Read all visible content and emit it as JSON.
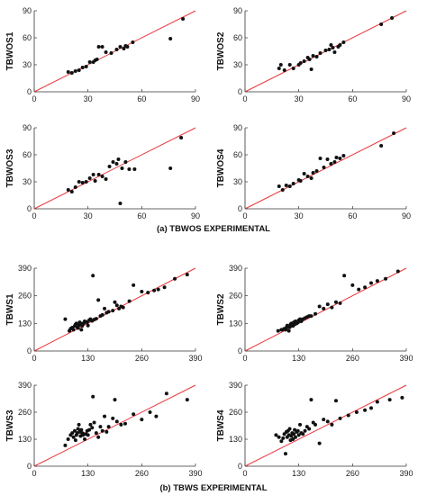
{
  "captions": {
    "a": "(a) TBWOS EXPERIMENTAL",
    "b": "(b) TBWS EXPERIMENTAL"
  },
  "colors": {
    "line": "#e8383d",
    "point": "#111111",
    "axis": "#333333"
  },
  "chart_data": [
    {
      "type": "scatter",
      "ylabel": "TBWOS1",
      "xlim": [
        0,
        90
      ],
      "ylim": [
        0,
        90
      ],
      "xticks": [
        0,
        30,
        60,
        90
      ],
      "yticks": [
        0,
        30,
        60,
        90
      ],
      "reference_line": "y = x",
      "points": [
        [
          19,
          22
        ],
        [
          21,
          21
        ],
        [
          23,
          23
        ],
        [
          25,
          24
        ],
        [
          27,
          27
        ],
        [
          29,
          28
        ],
        [
          31,
          33
        ],
        [
          33,
          33
        ],
        [
          34,
          35
        ],
        [
          35,
          36
        ],
        [
          36,
          50
        ],
        [
          38,
          50
        ],
        [
          40,
          44
        ],
        [
          43,
          43
        ],
        [
          46,
          47
        ],
        [
          48,
          50
        ],
        [
          50,
          48
        ],
        [
          51,
          51
        ],
        [
          52,
          50
        ],
        [
          55,
          55
        ],
        [
          76,
          59
        ],
        [
          83,
          81
        ]
      ]
    },
    {
      "type": "scatter",
      "ylabel": "TBWOS2",
      "xlim": [
        0,
        90
      ],
      "ylim": [
        0,
        90
      ],
      "xticks": [
        0,
        30,
        60,
        90
      ],
      "yticks": [
        0,
        30,
        60,
        90
      ],
      "reference_line": "y = x",
      "points": [
        [
          19,
          26
        ],
        [
          20,
          30
        ],
        [
          22,
          24
        ],
        [
          25,
          30
        ],
        [
          27,
          26
        ],
        [
          30,
          30
        ],
        [
          31,
          32
        ],
        [
          33,
          34
        ],
        [
          35,
          38
        ],
        [
          36,
          36
        ],
        [
          37,
          25
        ],
        [
          38,
          40
        ],
        [
          40,
          39
        ],
        [
          42,
          43
        ],
        [
          45,
          46
        ],
        [
          47,
          47
        ],
        [
          48,
          52
        ],
        [
          49,
          49
        ],
        [
          50,
          44
        ],
        [
          52,
          50
        ],
        [
          53,
          52
        ],
        [
          55,
          55
        ],
        [
          76,
          75
        ],
        [
          82,
          82
        ]
      ]
    },
    {
      "type": "scatter",
      "ylabel": "TBWOS3",
      "xlim": [
        0,
        90
      ],
      "ylim": [
        0,
        90
      ],
      "xticks": [
        0,
        30,
        60,
        90
      ],
      "yticks": [
        0,
        30,
        60,
        90
      ],
      "reference_line": "y = x",
      "points": [
        [
          19,
          21
        ],
        [
          21,
          19
        ],
        [
          23,
          24
        ],
        [
          25,
          30
        ],
        [
          27,
          29
        ],
        [
          29,
          30
        ],
        [
          31,
          34
        ],
        [
          33,
          38
        ],
        [
          34,
          31
        ],
        [
          36,
          38
        ],
        [
          38,
          36
        ],
        [
          40,
          33
        ],
        [
          42,
          47
        ],
        [
          44,
          52
        ],
        [
          46,
          50
        ],
        [
          47,
          55
        ],
        [
          48,
          6
        ],
        [
          49,
          45
        ],
        [
          51,
          52
        ],
        [
          53,
          44
        ],
        [
          56,
          44
        ],
        [
          76,
          45
        ],
        [
          82,
          79
        ]
      ]
    },
    {
      "type": "scatter",
      "ylabel": "TBWOS4",
      "xlim": [
        0,
        90
      ],
      "ylim": [
        0,
        90
      ],
      "xticks": [
        0,
        30,
        60,
        90
      ],
      "yticks": [
        0,
        30,
        60,
        90
      ],
      "reference_line": "y = x",
      "points": [
        [
          19,
          25
        ],
        [
          21,
          21
        ],
        [
          23,
          26
        ],
        [
          25,
          25
        ],
        [
          27,
          28
        ],
        [
          30,
          32
        ],
        [
          31,
          31
        ],
        [
          33,
          39
        ],
        [
          35,
          36
        ],
        [
          37,
          34
        ],
        [
          38,
          40
        ],
        [
          40,
          42
        ],
        [
          42,
          56
        ],
        [
          44,
          46
        ],
        [
          46,
          55
        ],
        [
          48,
          50
        ],
        [
          50,
          52
        ],
        [
          51,
          57
        ],
        [
          53,
          56
        ],
        [
          55,
          59
        ],
        [
          76,
          70
        ],
        [
          83,
          84
        ]
      ]
    },
    {
      "type": "scatter",
      "ylabel": "TBWS1",
      "xlim": [
        0,
        390
      ],
      "ylim": [
        0,
        390
      ],
      "xticks": [
        0,
        130,
        260,
        390
      ],
      "yticks": [
        0,
        130,
        260,
        390
      ],
      "reference_line": "y = x",
      "points": [
        [
          75,
          150
        ],
        [
          85,
          95
        ],
        [
          88,
          105
        ],
        [
          92,
          110
        ],
        [
          95,
          100
        ],
        [
          98,
          118
        ],
        [
          100,
          125
        ],
        [
          102,
          130
        ],
        [
          104,
          112
        ],
        [
          106,
          108
        ],
        [
          108,
          122
        ],
        [
          110,
          135
        ],
        [
          112,
          130
        ],
        [
          114,
          100
        ],
        [
          116,
          118
        ],
        [
          118,
          128
        ],
        [
          120,
          132
        ],
        [
          122,
          140
        ],
        [
          125,
          138
        ],
        [
          128,
          135
        ],
        [
          130,
          120
        ],
        [
          133,
          145
        ],
        [
          136,
          150
        ],
        [
          140,
          142
        ],
        [
          142,
          355
        ],
        [
          145,
          148
        ],
        [
          150,
          152
        ],
        [
          155,
          240
        ],
        [
          160,
          165
        ],
        [
          165,
          170
        ],
        [
          170,
          200
        ],
        [
          175,
          180
        ],
        [
          180,
          185
        ],
        [
          190,
          190
        ],
        [
          195,
          230
        ],
        [
          200,
          215
        ],
        [
          205,
          200
        ],
        [
          210,
          210
        ],
        [
          215,
          205
        ],
        [
          230,
          235
        ],
        [
          240,
          310
        ],
        [
          260,
          280
        ],
        [
          275,
          275
        ],
        [
          290,
          285
        ],
        [
          300,
          290
        ],
        [
          315,
          300
        ],
        [
          340,
          340
        ],
        [
          370,
          360
        ]
      ]
    },
    {
      "type": "scatter",
      "ylabel": "TBWS2",
      "xlim": [
        0,
        390
      ],
      "ylim": [
        0,
        390
      ],
      "xticks": [
        0,
        130,
        260,
        390
      ],
      "yticks": [
        0,
        130,
        260,
        390
      ],
      "reference_line": "y = x",
      "points": [
        [
          80,
          95
        ],
        [
          88,
          100
        ],
        [
          90,
          100
        ],
        [
          95,
          105
        ],
        [
          98,
          100
        ],
        [
          100,
          110
        ],
        [
          102,
          120
        ],
        [
          104,
          115
        ],
        [
          106,
          95
        ],
        [
          108,
          112
        ],
        [
          110,
          125
        ],
        [
          112,
          130
        ],
        [
          114,
          120
        ],
        [
          116,
          118
        ],
        [
          118,
          135
        ],
        [
          120,
          125
        ],
        [
          122,
          140
        ],
        [
          125,
          130
        ],
        [
          128,
          135
        ],
        [
          130,
          145
        ],
        [
          133,
          150
        ],
        [
          136,
          140
        ],
        [
          140,
          150
        ],
        [
          145,
          155
        ],
        [
          150,
          160
        ],
        [
          155,
          165
        ],
        [
          160,
          165
        ],
        [
          170,
          175
        ],
        [
          180,
          210
        ],
        [
          190,
          200
        ],
        [
          200,
          220
        ],
        [
          210,
          205
        ],
        [
          220,
          230
        ],
        [
          230,
          225
        ],
        [
          240,
          355
        ],
        [
          260,
          310
        ],
        [
          275,
          290
        ],
        [
          290,
          300
        ],
        [
          305,
          320
        ],
        [
          320,
          330
        ],
        [
          340,
          340
        ],
        [
          370,
          375
        ]
      ]
    },
    {
      "type": "scatter",
      "ylabel": "TBWS3",
      "xlim": [
        0,
        390
      ],
      "ylim": [
        0,
        390
      ],
      "xticks": [
        0,
        130,
        260,
        390
      ],
      "yticks": [
        0,
        130,
        260,
        390
      ],
      "reference_line": "y = x",
      "points": [
        [
          75,
          100
        ],
        [
          82,
          130
        ],
        [
          88,
          150
        ],
        [
          92,
          160
        ],
        [
          95,
          140
        ],
        [
          98,
          170
        ],
        [
          100,
          125
        ],
        [
          102,
          150
        ],
        [
          104,
          160
        ],
        [
          106,
          180
        ],
        [
          108,
          200
        ],
        [
          110,
          165
        ],
        [
          112,
          145
        ],
        [
          114,
          175
        ],
        [
          116,
          160
        ],
        [
          118,
          150
        ],
        [
          120,
          155
        ],
        [
          122,
          130
        ],
        [
          125,
          155
        ],
        [
          128,
          170
        ],
        [
          130,
          150
        ],
        [
          133,
          175
        ],
        [
          136,
          200
        ],
        [
          140,
          185
        ],
        [
          142,
          335
        ],
        [
          145,
          210
        ],
        [
          150,
          160
        ],
        [
          155,
          140
        ],
        [
          160,
          190
        ],
        [
          165,
          170
        ],
        [
          170,
          240
        ],
        [
          175,
          165
        ],
        [
          180,
          190
        ],
        [
          190,
          230
        ],
        [
          195,
          320
        ],
        [
          200,
          215
        ],
        [
          210,
          200
        ],
        [
          220,
          205
        ],
        [
          240,
          250
        ],
        [
          260,
          225
        ],
        [
          280,
          260
        ],
        [
          295,
          240
        ],
        [
          320,
          350
        ],
        [
          370,
          320
        ]
      ]
    },
    {
      "type": "scatter",
      "ylabel": "TBWS4",
      "xlim": [
        0,
        390
      ],
      "ylim": [
        0,
        390
      ],
      "xticks": [
        0,
        130,
        260,
        390
      ],
      "yticks": [
        0,
        130,
        260,
        390
      ],
      "reference_line": "y = x",
      "points": [
        [
          75,
          150
        ],
        [
          82,
          140
        ],
        [
          88,
          120
        ],
        [
          92,
          135
        ],
        [
          95,
          155
        ],
        [
          98,
          60
        ],
        [
          100,
          165
        ],
        [
          102,
          140
        ],
        [
          104,
          170
        ],
        [
          106,
          150
        ],
        [
          108,
          180
        ],
        [
          110,
          125
        ],
        [
          112,
          145
        ],
        [
          114,
          160
        ],
        [
          116,
          130
        ],
        [
          118,
          155
        ],
        [
          120,
          175
        ],
        [
          122,
          140
        ],
        [
          125,
          165
        ],
        [
          128,
          170
        ],
        [
          130,
          150
        ],
        [
          133,
          200
        ],
        [
          136,
          160
        ],
        [
          140,
          155
        ],
        [
          145,
          170
        ],
        [
          150,
          190
        ],
        [
          155,
          180
        ],
        [
          160,
          320
        ],
        [
          165,
          210
        ],
        [
          170,
          200
        ],
        [
          180,
          110
        ],
        [
          190,
          225
        ],
        [
          200,
          215
        ],
        [
          210,
          200
        ],
        [
          220,
          315
        ],
        [
          230,
          230
        ],
        [
          250,
          245
        ],
        [
          270,
          260
        ],
        [
          290,
          270
        ],
        [
          305,
          280
        ],
        [
          320,
          310
        ],
        [
          350,
          320
        ],
        [
          380,
          330
        ]
      ]
    }
  ]
}
